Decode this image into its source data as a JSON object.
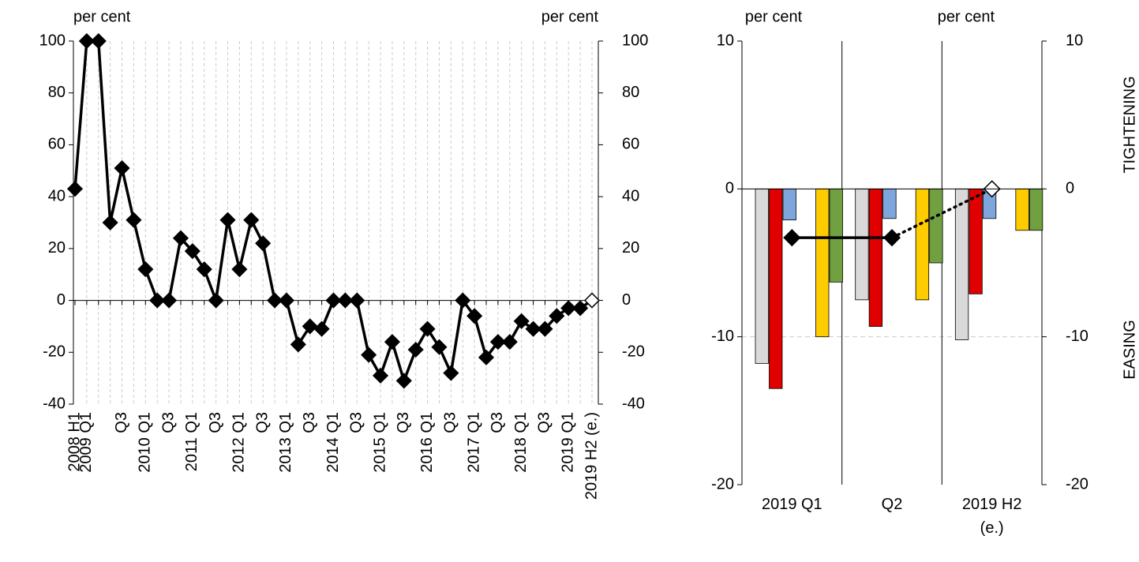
{
  "chart_data": [
    {
      "type": "line",
      "ylabel": "per cent",
      "y2label": "per cent",
      "categories": [
        "2008 H1",
        "2009 Q1",
        null,
        null,
        "Q3",
        null,
        "2010 Q1",
        null,
        "Q3",
        null,
        "2011 Q1",
        null,
        "Q3",
        null,
        "2012 Q1",
        null,
        "Q3",
        null,
        "2013 Q1",
        null,
        "Q3",
        null,
        "2014 Q1",
        null,
        "Q3",
        null,
        "2015 Q1",
        null,
        "Q3",
        null,
        "2016 Q1",
        null,
        "Q3",
        null,
        "2017 Q1",
        null,
        "Q3",
        null,
        "2018 Q1",
        null,
        "Q3",
        null,
        "2019 Q1",
        null,
        "2019 H2 (e.)"
      ],
      "series": [
        {
          "color": "#000000",
          "values": [
            43,
            100,
            100,
            30,
            51,
            31,
            12,
            0,
            0,
            24,
            19,
            12,
            0,
            31,
            12,
            31,
            22,
            0,
            0,
            -17,
            -10,
            -11,
            0,
            0,
            0,
            -21,
            -29,
            -16,
            -31,
            -19,
            -11,
            -18,
            -28,
            0,
            -6,
            -22,
            -16,
            -16,
            -8,
            -11,
            -11,
            -6,
            -3,
            -3,
            0
          ]
        }
      ],
      "ylim": [
        -40,
        100
      ],
      "yticks": [
        -40,
        -20,
        0,
        20,
        40,
        60,
        80,
        100
      ],
      "y2lim": [
        -40,
        100
      ],
      "y2ticks": [
        -40,
        -20,
        0,
        20,
        40,
        60,
        80,
        100
      ],
      "grid": true
    },
    {
      "type": "bar",
      "ylabel": "per cent",
      "y2label": "per cent",
      "annotations": [
        "TIGHTENING",
        "EASING"
      ],
      "categories": [
        "2019 Q1",
        "Q2",
        "2019 H2 (e.)"
      ],
      "series": [
        {
          "color": "#d9d9d9",
          "values": [
            -11.8,
            -7.5,
            -10.2
          ]
        },
        {
          "color": "#e00000",
          "values": [
            -13.5,
            -9.3,
            -7.1
          ]
        },
        {
          "color": "#7ea6dc",
          "values": [
            -2.1,
            -2.0,
            -2.0
          ]
        },
        {
          "color": "#ffcc00",
          "values": [
            -10.0,
            -7.5,
            -2.8
          ]
        },
        {
          "color": "#70a040",
          "values": [
            -6.3,
            -5.0,
            -2.8
          ]
        },
        {
          "type": "line",
          "color": "#000000",
          "values": [
            -3.3,
            -3.3,
            0
          ]
        }
      ],
      "ylim": [
        -20,
        10
      ],
      "yticks": [
        -20,
        -10,
        0,
        10
      ],
      "y2lim": [
        -20,
        10
      ],
      "y2ticks": [
        -20,
        -10,
        0,
        10
      ],
      "grid": true
    }
  ]
}
